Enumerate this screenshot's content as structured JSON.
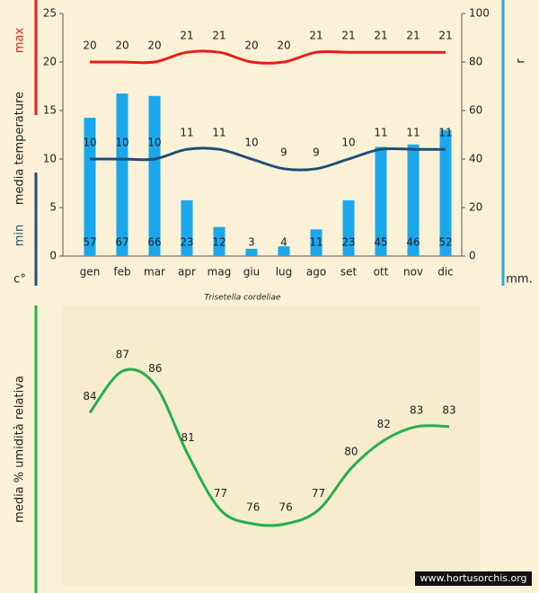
{
  "chart_data": [
    {
      "type": "bar",
      "title": "Trisetella cordeliae",
      "categories": [
        "gen",
        "feb",
        "mar",
        "apr",
        "mag",
        "giu",
        "lug",
        "ago",
        "set",
        "ott",
        "nov",
        "dic"
      ],
      "series": [
        {
          "type": "bar",
          "color": "#1aa7ec",
          "axis": "y2",
          "values": [
            57,
            67,
            66,
            23,
            12,
            3,
            4,
            11,
            23,
            45,
            46,
            52
          ]
        },
        {
          "type": "line",
          "color": "#e81c1c",
          "values": [
            20,
            20,
            20,
            21,
            21,
            20,
            20,
            21,
            21,
            21,
            21,
            21
          ]
        },
        {
          "type": "line",
          "color": "#1f4e79",
          "values": [
            10,
            10,
            10,
            11,
            11,
            10,
            9,
            9,
            10,
            11,
            11,
            11
          ]
        }
      ],
      "ylim": [
        0,
        25
      ],
      "yticks": [
        0,
        5,
        10,
        15,
        20,
        25
      ],
      "y2lim": [
        0,
        100
      ],
      "y2ticks": [
        0,
        20,
        40,
        60,
        80,
        100
      ],
      "ylabel": [
        "max",
        "media  temperature",
        "min",
        "c°"
      ],
      "y2label": [
        "r",
        "mm."
      ]
    },
    {
      "type": "line",
      "ylabel": "media %  umidità relativa",
      "series": [
        {
          "color": "#22b14c",
          "values": [
            84,
            87,
            86,
            81,
            77,
            76,
            76,
            77,
            80,
            82,
            83,
            83
          ]
        }
      ]
    }
  ],
  "watermark": "www.hortusorchis.org"
}
